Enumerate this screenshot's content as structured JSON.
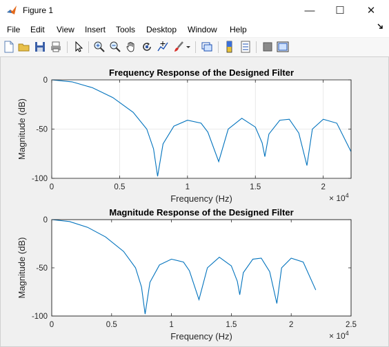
{
  "window": {
    "title": "Figure 1",
    "minimize": "—",
    "maximize": "☐",
    "close": "✕"
  },
  "menu": [
    "File",
    "Edit",
    "View",
    "Insert",
    "Tools",
    "Desktop",
    "Window",
    "Help"
  ],
  "toolbar": [
    {
      "icon": "new-figure-icon"
    },
    {
      "icon": "open-file-icon"
    },
    {
      "icon": "save-icon"
    },
    {
      "icon": "print-icon"
    },
    {
      "icon": "edit-pointer-icon"
    },
    {
      "icon": "zoom-in-icon"
    },
    {
      "icon": "zoom-out-icon"
    },
    {
      "icon": "pan-hand-icon"
    },
    {
      "icon": "rotate-3d-icon"
    },
    {
      "icon": "data-cursor-icon"
    },
    {
      "icon": "brush-icon"
    },
    {
      "icon": "link-plot-icon"
    },
    {
      "icon": "colorbar-icon"
    },
    {
      "icon": "legend-icon"
    },
    {
      "icon": "hide-plot-tools-icon"
    },
    {
      "icon": "show-plot-tools-icon"
    }
  ],
  "chart_data": [
    {
      "type": "line",
      "title": "Frequency Response of the Designed Filter",
      "xlabel": "Frequency (Hz)",
      "ylabel": "Magnitude (dB)",
      "x_exponent": "× 10^4",
      "xlim": [
        0,
        22050
      ],
      "ylim": [
        -100,
        0
      ],
      "xticks": [
        0,
        5000,
        10000,
        15000,
        20000
      ],
      "xtick_labels": [
        "0",
        "0.5",
        "1",
        "1.5",
        "2"
      ],
      "yticks": [
        0,
        -50,
        -100
      ],
      "ytick_labels": [
        "0",
        "-50",
        "-100"
      ],
      "grid": true,
      "color": "#0072bd",
      "x": [
        0,
        1500,
        3000,
        4500,
        6000,
        7000,
        7500,
        7800,
        8200,
        9000,
        10000,
        11000,
        11500,
        12300,
        13000,
        14000,
        15000,
        15500,
        15700,
        16000,
        16800,
        17500,
        18200,
        18800,
        19200,
        20000,
        21000,
        22050
      ],
      "y": [
        0,
        -2,
        -8,
        -18,
        -33,
        -50,
        -70,
        -98,
        -65,
        -47,
        -41,
        -44,
        -53,
        -83,
        -50,
        -39,
        -48,
        -64,
        -78,
        -55,
        -41,
        -40,
        -54,
        -87,
        -50,
        -40,
        -44,
        -73
      ]
    },
    {
      "type": "line",
      "title": "Magnitude Response of the Designed Filter",
      "xlabel": "Frequency (Hz)",
      "ylabel": "Magnitude (dB)",
      "x_exponent": "× 10^4",
      "xlim": [
        0,
        25000
      ],
      "ylim": [
        -100,
        0
      ],
      "xticks": [
        0,
        5000,
        10000,
        15000,
        20000,
        25000
      ],
      "xtick_labels": [
        "0",
        "0.5",
        "1",
        "1.5",
        "2",
        "2.5"
      ],
      "yticks": [
        0,
        -50,
        -100
      ],
      "ytick_labels": [
        "0",
        "-50",
        "-100"
      ],
      "grid": false,
      "color": "#0072bd",
      "x": [
        0,
        1500,
        3000,
        4500,
        6000,
        7000,
        7500,
        7800,
        8200,
        9000,
        10000,
        11000,
        11500,
        12300,
        13000,
        14000,
        15000,
        15500,
        15700,
        16000,
        16800,
        17500,
        18200,
        18800,
        19200,
        20000,
        21000,
        22050
      ],
      "y": [
        0,
        -2,
        -8,
        -18,
        -33,
        -50,
        -70,
        -98,
        -65,
        -47,
        -41,
        -44,
        -53,
        -83,
        -50,
        -39,
        -48,
        -64,
        -78,
        -55,
        -41,
        -40,
        -54,
        -87,
        -50,
        -40,
        -44,
        -73
      ]
    }
  ]
}
